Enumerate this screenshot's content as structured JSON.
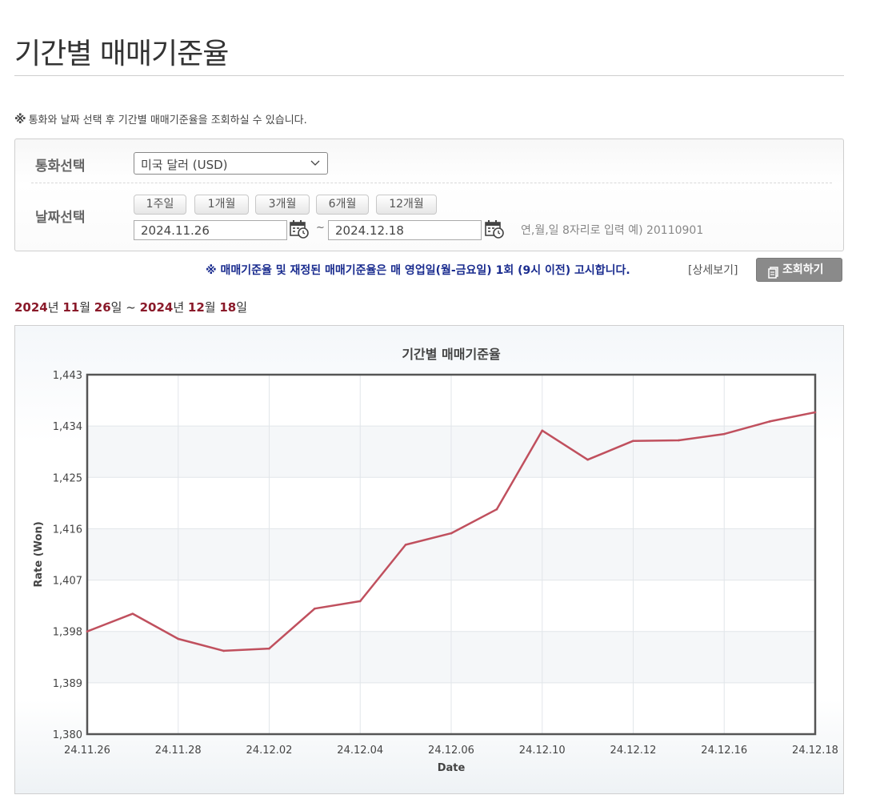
{
  "page": {
    "title": "기간별 매매기준율"
  },
  "notice": {
    "mark": "※",
    "text": "통화와 날짜 선택 후 기간별 매매기준율을 조회하실 수 있습니다."
  },
  "filter": {
    "currency_label": "통화선택",
    "currency_selected": "미국 달러 (USD)",
    "date_label": "날짜선택",
    "period_buttons": [
      "1주일",
      "1개월",
      "3개월",
      "6개월",
      "12개월"
    ],
    "start_date": "2024.11.26",
    "end_date": "2024.12.18",
    "tilde": "~",
    "date_hint": "연,월,일 8자리로 입력 예) 20110901"
  },
  "info": {
    "text": "※ 매매기준율 및 재정된 매매기준율은 매 영업일(월-금요일) 1회 (9시 이전) 고시합니다.",
    "detail_link": "[상세보기]",
    "query_button": "조회하기"
  },
  "range": {
    "start_year": "2024",
    "y_suffix": "년 ",
    "start_month": "11",
    "m_suffix": "월 ",
    "start_day": "26",
    "d_suffix": "일",
    "sep": " ~ ",
    "end_year": "2024",
    "end_month": "12",
    "end_day": "18"
  },
  "colors": {
    "line": "#c0505e",
    "axis": "#555555",
    "grid": "#e2e6ea",
    "range_highlight": "#8a1a2a",
    "info_text": "#1a2c8f"
  },
  "chart_data": {
    "type": "line",
    "title": "기간별 매매기준율",
    "xlabel": "Date",
    "ylabel": "Rate (Won)",
    "ylim": [
      1380,
      1443
    ],
    "yticks": [
      "1,380",
      "1,389",
      "1,398",
      "1,407",
      "1,416",
      "1,425",
      "1,434",
      "1,443"
    ],
    "xticks": [
      "24.11.26",
      "24.11.28",
      "24.12.02",
      "24.12.04",
      "24.12.06",
      "24.12.10",
      "24.12.12",
      "24.12.16",
      "24.12.18"
    ],
    "x": [
      "24.11.26",
      "24.11.27",
      "24.11.28",
      "24.11.29",
      "24.12.02",
      "24.12.03",
      "24.12.04",
      "24.12.05",
      "24.12.06",
      "24.12.09",
      "24.12.10",
      "24.12.11",
      "24.12.12",
      "24.12.13",
      "24.12.16",
      "24.12.17",
      "24.12.18"
    ],
    "series": [
      {
        "values": [
          1398.0,
          1401.1,
          1396.7,
          1394.6,
          1395.0,
          1402.0,
          1403.3,
          1413.2,
          1415.2,
          1419.4,
          1433.2,
          1428.1,
          1431.4,
          1431.5,
          1432.6,
          1434.8,
          1436.4
        ]
      }
    ],
    "grid": true,
    "legend": "none"
  }
}
